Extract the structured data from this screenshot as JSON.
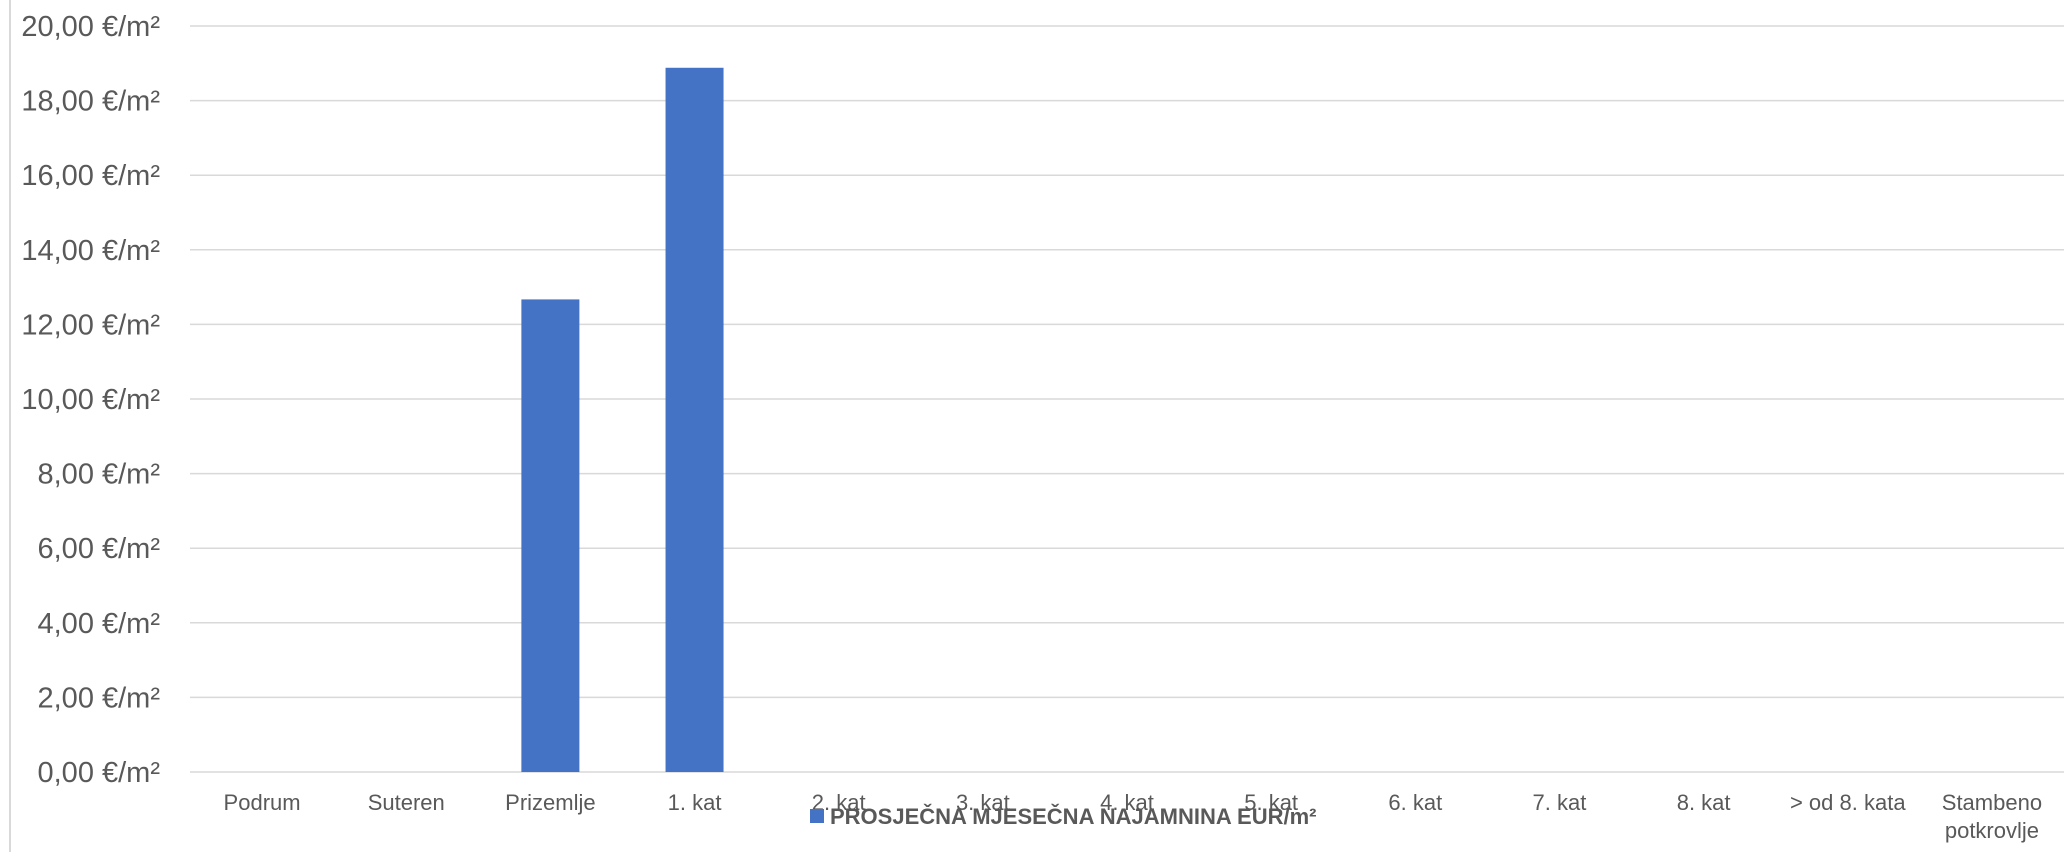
{
  "chart_data": {
    "type": "bar",
    "title": "",
    "xlabel": "",
    "ylabel": "",
    "categories": [
      "Podrum",
      "Suteren",
      "Prizemlje",
      "1. kat",
      "2. kat",
      "3. kat",
      "4. kat",
      "5. kat",
      "6. kat",
      "7. kat",
      "8. kat",
      "> od 8. kata",
      "Stambeno potkrovlje"
    ],
    "series": [
      {
        "name": "PROSJEČNA MJESEČNA NAJAMNINA EUR/m²",
        "color": "#4472C4",
        "values": [
          0,
          0,
          12.67,
          18.88,
          0,
          0,
          0,
          0,
          0,
          0,
          0,
          0,
          0
        ]
      }
    ],
    "ylim": [
      0,
      20
    ],
    "ytick_labels": [
      "0,00 €/m²",
      "2,00 €/m²",
      "4,00 €/m²",
      "6,00 €/m²",
      "8,00 €/m²",
      "10,00 €/m²",
      "12,00 €/m²",
      "14,00 €/m²",
      "16,00 €/m²",
      "18,00 €/m²",
      "20,00 €/m²"
    ],
    "grid": true,
    "legend_position": "bottom"
  }
}
